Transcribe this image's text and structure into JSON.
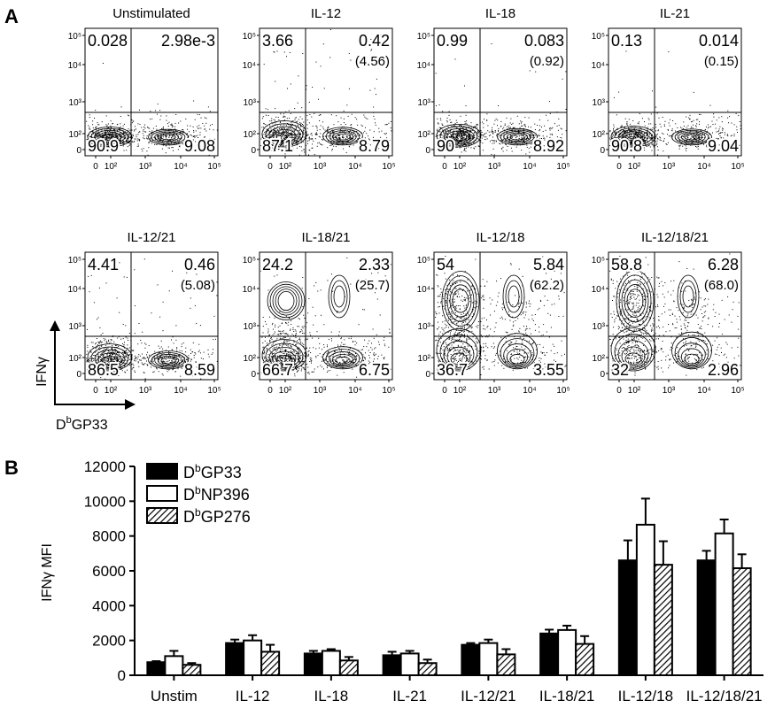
{
  "panel_a": {
    "letter": "A",
    "x_axis_name": "GP33",
    "y_axis_name": "IFNγ",
    "tick_labels": [
      "10⁵",
      "10⁴",
      "10³",
      "10²",
      "0"
    ],
    "x_tick_labels": [
      "0",
      "10²",
      "10³",
      "10⁴",
      "10⁵"
    ]
  },
  "panel_b": {
    "letter": "B",
    "ylabel": "IFNγ MFI"
  },
  "chart_data": [
    {
      "type": "scatter",
      "description_type": "flow cytometry quadrant plots",
      "xlabel": "DbGP33",
      "ylabel": "IFNγ",
      "axis_scale": "log (biexponential)",
      "plots": [
        {
          "title": "Unstimulated",
          "upper_left": "0.028",
          "upper_right": "2.98e-3",
          "upper_right_paren": "",
          "lower_left": "90.9",
          "lower_right": "9.08"
        },
        {
          "title": "IL-12",
          "upper_left": "3.66",
          "upper_right": "0.42",
          "upper_right_paren": "(4.56)",
          "lower_left": "87.1",
          "lower_right": "8.79"
        },
        {
          "title": "IL-18",
          "upper_left": "0.99",
          "upper_right": "0.083",
          "upper_right_paren": "(0.92)",
          "lower_left": "90",
          "lower_right": "8.92"
        },
        {
          "title": "IL-21",
          "upper_left": "0.13",
          "upper_right": "0.014",
          "upper_right_paren": "(0.15)",
          "lower_left": "90.8",
          "lower_right": "9.04"
        },
        {
          "title": "IL-12/21",
          "upper_left": "4.41",
          "upper_right": "0.46",
          "upper_right_paren": "(5.08)",
          "lower_left": "86.5",
          "lower_right": "8.59"
        },
        {
          "title": "IL-18/21",
          "upper_left": "24.2",
          "upper_right": "2.33",
          "upper_right_paren": "(25.7)",
          "lower_left": "66.7",
          "lower_right": "6.75"
        },
        {
          "title": "IL-12/18",
          "upper_left": "54",
          "upper_right": "5.84",
          "upper_right_paren": "(62.2)",
          "lower_left": "36.7",
          "lower_right": "3.55"
        },
        {
          "title": "IL-12/18/21",
          "upper_left": "58.8",
          "upper_right": "6.28",
          "upper_right_paren": "(68.0)",
          "lower_left": "32",
          "lower_right": "2.96"
        }
      ]
    },
    {
      "type": "bar",
      "ylabel": "IFNγ MFI",
      "ylim": [
        0,
        12000
      ],
      "yticks": [
        0,
        2000,
        4000,
        6000,
        8000,
        10000,
        12000
      ],
      "categories": [
        "Unstim",
        "IL-12",
        "IL-18",
        "IL-21",
        "IL-12/21",
        "IL-18/21",
        "IL-12/18",
        "IL-12/18/21"
      ],
      "legend_position": "top-left",
      "series": [
        {
          "name": "DbGP33",
          "fill": "solid-black",
          "values": [
            750,
            1850,
            1250,
            1150,
            1750,
            2400,
            6600,
            6600
          ],
          "errors": [
            60,
            200,
            150,
            200,
            100,
            220,
            1150,
            550
          ]
        },
        {
          "name": "DbNP396",
          "fill": "white",
          "values": [
            1100,
            2000,
            1400,
            1250,
            1850,
            2600,
            8650,
            8150
          ],
          "errors": [
            300,
            300,
            100,
            150,
            200,
            250,
            1500,
            800
          ]
        },
        {
          "name": "DbGP276",
          "fill": "hatched",
          "values": [
            600,
            1350,
            850,
            700,
            1200,
            1800,
            6350,
            6150
          ],
          "errors": [
            100,
            400,
            200,
            200,
            300,
            450,
            1350,
            800
          ]
        }
      ]
    }
  ]
}
